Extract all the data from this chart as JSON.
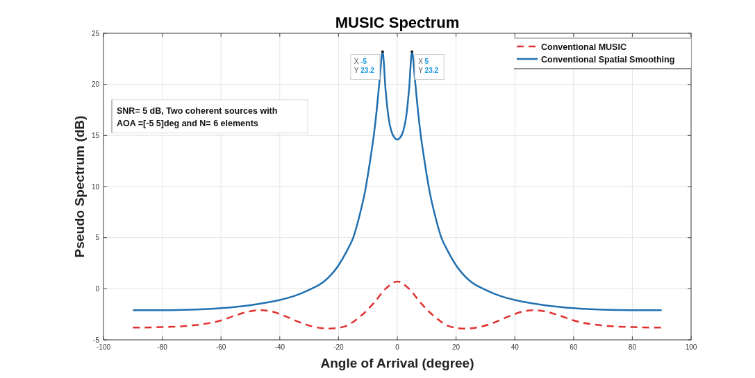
{
  "chart_data": {
    "type": "line",
    "title": "MUSIC Spectrum",
    "xlabel": "Angle of Arrival (degree)",
    "ylabel": "Pseudo Spectrum (dB)",
    "xlim": [
      -100,
      100
    ],
    "xticks": [
      -100,
      -80,
      -60,
      -40,
      -20,
      0,
      20,
      40,
      60,
      80,
      100
    ],
    "ylim": [
      -5,
      25
    ],
    "yticks": [
      -5,
      0,
      5,
      10,
      15,
      20,
      25
    ],
    "grid": true,
    "legend": "top right",
    "series": [
      {
        "name": "Conventional MUSIC",
        "color": "#e03030",
        "line_style": "dashed",
        "x": [
          -90,
          -80,
          -70,
          -60,
          -55,
          -50,
          -47,
          -43,
          -38,
          -33,
          -28,
          -23,
          -18,
          -13,
          -8,
          -4,
          0,
          4,
          8,
          13,
          18,
          23,
          28,
          33,
          38,
          43,
          47,
          50,
          55,
          60,
          70,
          80,
          90
        ],
        "values": [
          -3.8,
          -3.75,
          -3.6,
          -3.1,
          -2.6,
          -2.2,
          -2.1,
          -2.2,
          -2.7,
          -3.3,
          -3.75,
          -3.9,
          -3.7,
          -2.8,
          -1.4,
          0,
          0.7,
          0,
          -1.4,
          -2.8,
          -3.7,
          -3.9,
          -3.75,
          -3.3,
          -2.7,
          -2.2,
          -2.1,
          -2.2,
          -2.6,
          -3.1,
          -3.6,
          -3.75,
          -3.8
        ]
      },
      {
        "name": "Conventional Spatial Smoothing",
        "color": "#1f6fb0",
        "line_style": "solid",
        "x": [
          -90,
          -80,
          -70,
          -60,
          -50,
          -40,
          -35,
          -30,
          -25,
          -20,
          -17,
          -15,
          -13,
          -11,
          -9,
          -8,
          -7,
          -6,
          -5,
          -4,
          -3,
          -2,
          -1,
          0,
          1,
          2,
          3,
          4,
          5,
          6,
          7,
          8,
          9,
          11,
          13,
          15,
          17,
          20,
          25,
          30,
          35,
          40,
          50,
          60,
          70,
          80,
          90
        ],
        "values": [
          -2.1,
          -2.1,
          -2.05,
          -1.9,
          -1.6,
          -1.1,
          -0.7,
          -0.1,
          0.7,
          2.3,
          3.8,
          5,
          7,
          9.5,
          13,
          15,
          17.5,
          20.5,
          23.2,
          19.5,
          16.8,
          15.4,
          14.8,
          14.6,
          14.8,
          15.4,
          16.8,
          19.5,
          23.2,
          20.5,
          17.5,
          15,
          13,
          9.5,
          7,
          5,
          3.8,
          2.3,
          0.7,
          -0.1,
          -0.7,
          -1.1,
          -1.6,
          -1.9,
          -2.05,
          -2.1,
          -2.1
        ]
      }
    ],
    "annotations": [
      {
        "text": "X -5\nY 23.2",
        "x": -5,
        "y": 23.2
      },
      {
        "text": "X 5\nY 23.2",
        "x": 5,
        "y": 23.2
      },
      "SNR= 5 dB, Two coherent sources with\nAOA =[-5 5]deg and N= 6 elements"
    ]
  }
}
